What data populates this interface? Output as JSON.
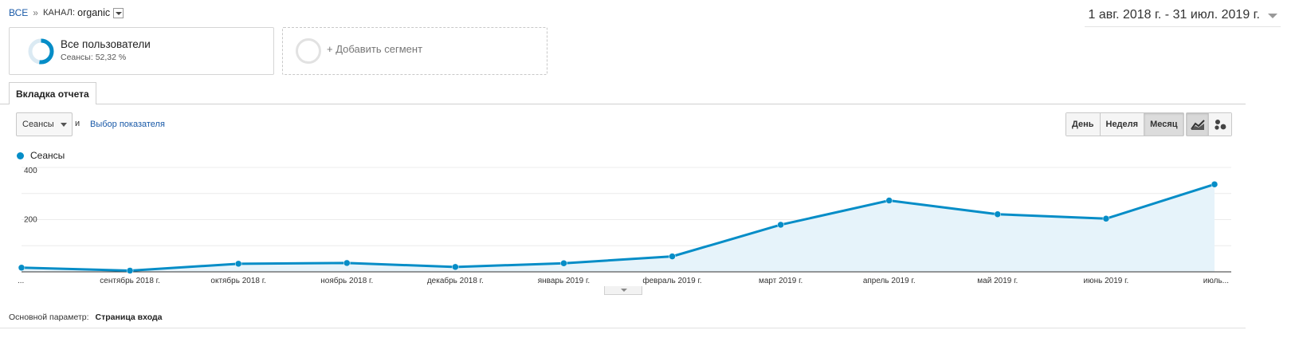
{
  "breadcrumb": {
    "all": "ВСЕ",
    "separator": "»",
    "channel_label": "КАНАЛ:",
    "channel_value": "organic"
  },
  "date_range": "1 авг. 2018 г. - 31 июл. 2019 г.",
  "segments": [
    {
      "title": "Все пользователи",
      "subtitle": "Сеансы: 52,32 %",
      "share": 0.5232
    },
    {
      "title": "+ Добавить сегмент"
    }
  ],
  "tab": "Вкладка отчета",
  "metric": {
    "selected": "Сеансы",
    "and_label": "и",
    "pick_label": "Выбор показателя"
  },
  "periods": [
    {
      "label": "День",
      "active": false
    },
    {
      "label": "Неделя",
      "active": false
    },
    {
      "label": "Месяц",
      "active": true
    }
  ],
  "view_buttons": [
    {
      "icon": "line-chart-icon",
      "active": true
    },
    {
      "icon": "motion-chart-icon",
      "active": false
    }
  ],
  "colors": {
    "series": "#058dc7",
    "area": "#e6f3fa",
    "ring_track": "#dbeaf3"
  },
  "chart_data": {
    "type": "area",
    "legend": "Сеансы",
    "y_ticks": [
      "400",
      "200"
    ],
    "ylim": [
      0,
      400
    ],
    "grid": true,
    "x": [
      "...",
      "сентябрь 2018 г.",
      "октябрь 2018 г.",
      "ноябрь 2018 г.",
      "декабрь 2018 г.",
      "январь 2019 г.",
      "февраль 2019 г.",
      "март 2019 г.",
      "апрель 2019 г.",
      "май 2019 г.",
      "июнь 2019 г.",
      "июль..."
    ],
    "series": [
      {
        "name": "Сеансы",
        "values": [
          17,
          5,
          33,
          36,
          20,
          35,
          63,
          192,
          291,
          235,
          217,
          357
        ]
      }
    ]
  },
  "dimension": {
    "label": "Основной параметр:",
    "value": "Страница входа"
  }
}
